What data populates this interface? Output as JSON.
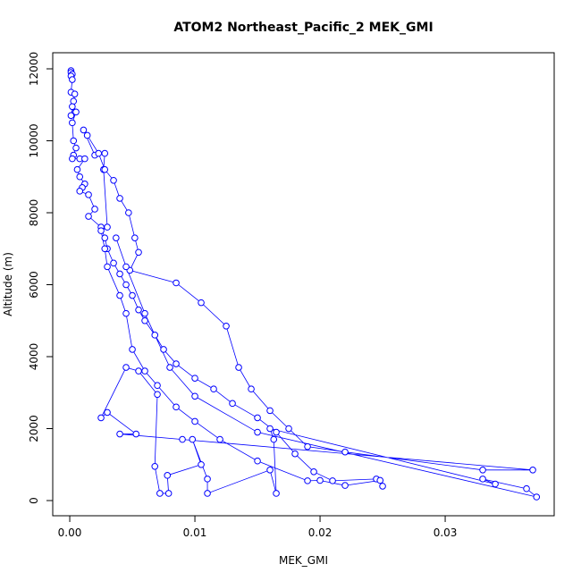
{
  "chart_data": {
    "type": "line",
    "title": "ATOM2 Northeast_Pacific_2 MEK_GMI",
    "xlabel": "MEK_GMI",
    "ylabel": "Altitude (m)",
    "x": [
      0.0001,
      0.0001,
      0.0002,
      0.0001,
      0.0002,
      0.0001,
      0.0004,
      0.0003,
      0.0002,
      0.0004,
      0.0001,
      0.0005,
      0.0002,
      0.0003,
      0.0005,
      0.0003,
      0.0002,
      0.0008,
      0.0012,
      0.0006,
      0.0008,
      0.0012,
      0.001,
      0.0008,
      0.0015,
      0.002,
      0.0015,
      0.0025,
      0.0028,
      0.003,
      0.0035,
      0.004,
      0.0045,
      0.005,
      0.0055,
      0.006,
      0.0068,
      0.0075,
      0.0085,
      0.01,
      0.0115,
      0.013,
      0.015,
      0.0165,
      0.018,
      0.0195,
      0.021,
      0.0245,
      0.025,
      0.0248,
      0.022,
      0.02,
      0.019,
      0.015,
      0.012,
      0.01,
      0.0085,
      0.007,
      0.006,
      0.005,
      0.0045,
      0.004,
      0.003,
      0.0028,
      0.0025,
      0.003,
      0.0027,
      0.0028,
      0.002,
      0.0011,
      0.0014,
      0.0023,
      0.0028,
      0.0035,
      0.004,
      0.0047,
      0.0052,
      0.0055,
      0.0048,
      0.0085,
      0.0105,
      0.0125,
      0.0135,
      0.0145,
      0.016,
      0.0175,
      0.019,
      0.022,
      0.033,
      0.037,
      0.009,
      0.004,
      0.0053,
      0.003,
      0.0025,
      0.0045,
      0.0055,
      0.007,
      0.0068,
      0.0072,
      0.0079,
      0.0078,
      0.0105,
      0.0098,
      0.011,
      0.011,
      0.016,
      0.0165,
      0.0163,
      0.016,
      0.034,
      0.033,
      0.0365,
      0.0373,
      0.015,
      0.01,
      0.008,
      0.006,
      0.0045,
      0.0037
    ],
    "series": [
      {
        "color": "#0000ff",
        "values": [
          11950,
          11900,
          11850,
          11800,
          11700,
          11350,
          11300,
          11100,
          10950,
          10800,
          10700,
          10800,
          10500,
          10000,
          9800,
          9600,
          9500,
          9500,
          9500,
          9200,
          9000,
          8800,
          8700,
          8600,
          8500,
          8100,
          7900,
          7600,
          7300,
          7000,
          6600,
          6300,
          6000,
          5700,
          5300,
          5000,
          4600,
          4200,
          3800,
          3400,
          3100,
          2700,
          2300,
          1900,
          1300,
          800,
          550,
          600,
          400,
          560,
          420,
          560,
          550,
          1100,
          1700,
          2200,
          2600,
          3200,
          3600,
          4200,
          5200,
          5700,
          6500,
          7000,
          7500,
          7600,
          9200,
          9650,
          9600,
          10300,
          10150,
          9650,
          9200,
          8900,
          8400,
          8000,
          7300,
          6900,
          6400,
          6050,
          5500,
          4850,
          3700,
          3100,
          2500,
          2000,
          1500,
          1350,
          850,
          850,
          1700,
          1850,
          1850,
          2450,
          2300,
          3700,
          3600,
          2950,
          950,
          200,
          200,
          700,
          1000,
          1700,
          600,
          200,
          850,
          200,
          1700,
          2000,
          460,
          600,
          330,
          100,
          1900,
          2900,
          3700,
          5200,
          6500,
          7300
        ]
      }
    ],
    "xlim": [
      -0.00136,
      0.03871
    ],
    "ylim": [
      -422,
      12447
    ],
    "xticks": [
      {
        "value": 0,
        "label": "0.00"
      },
      {
        "value": 0.01,
        "label": "0.01"
      },
      {
        "value": 0.02,
        "label": "0.02"
      },
      {
        "value": 0.03,
        "label": "0.03"
      }
    ],
    "yticks": [
      0,
      2000,
      4000,
      6000,
      8000,
      10000,
      12000
    ]
  }
}
